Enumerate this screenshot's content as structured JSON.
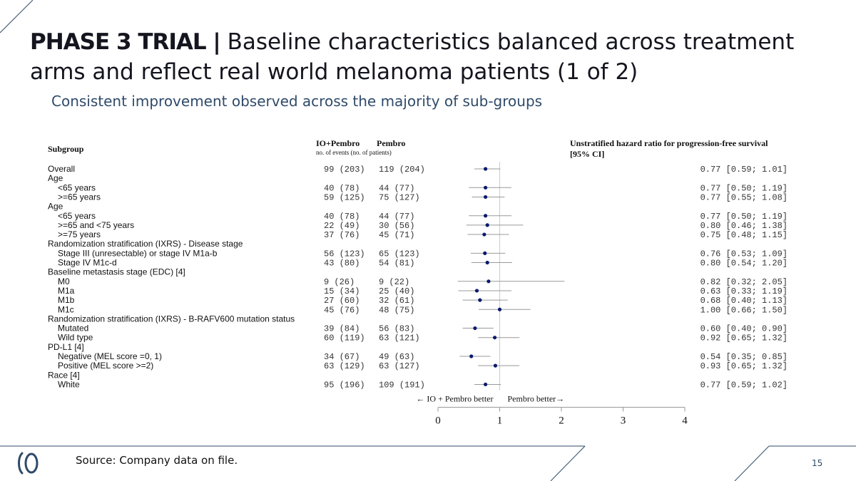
{
  "header": {
    "title_bold": "PHASE 3 TRIAL |",
    "title_rest": "Baseline characteristics balanced across treatment arms and reflect real world melanoma patients (1 of 2)",
    "subtitle": "Consistent improvement observed across the majority of sub-groups"
  },
  "footer": {
    "source": "Source: Company data on file.",
    "page_number": "15"
  },
  "colors": {
    "accent": "#2f4a6a",
    "marker": "#0a1a6e",
    "ci_line": "#999999",
    "divider": "#2f4a6a"
  },
  "chart_data": {
    "type": "forest",
    "title": "Unstratified hazard ratio for progression-free survival",
    "title_line2": "[95% CI]",
    "col_subgroup": "Subgroup",
    "col_io": "IO+Pembro",
    "col_pembro": "Pembro",
    "col_units": "no. of events  (no. of patients)",
    "left_label": "← IO + Pembro better",
    "right_label": "Pembro better→",
    "xlim": [
      0,
      4
    ],
    "xticks": [
      "0",
      "1",
      "2",
      "3",
      "4"
    ],
    "reference_line": 1,
    "rows": [
      {
        "label": "Overall",
        "indent": false,
        "io": "99 (203)",
        "pembro": "119 (204)",
        "hr": 0.77,
        "lo": 0.59,
        "hi": 1.01,
        "ci_text": "0.77 [0.59; 1.01]"
      },
      {
        "label": "Age",
        "indent": false,
        "header": true
      },
      {
        "label": "<65 years",
        "indent": true,
        "io": "40 (78)",
        "pembro": "44 (77)",
        "hr": 0.77,
        "lo": 0.5,
        "hi": 1.19,
        "ci_text": "0.77 [0.50; 1.19]"
      },
      {
        "label": ">=65 years",
        "indent": true,
        "io": "59 (125)",
        "pembro": "75 (127)",
        "hr": 0.77,
        "lo": 0.55,
        "hi": 1.08,
        "ci_text": "0.77 [0.55; 1.08]"
      },
      {
        "label": "Age",
        "indent": false,
        "header": true
      },
      {
        "label": "<65 years",
        "indent": true,
        "io": "40 (78)",
        "pembro": "44 (77)",
        "hr": 0.77,
        "lo": 0.5,
        "hi": 1.19,
        "ci_text": "0.77 [0.50; 1.19]"
      },
      {
        "label": ">=65 and <75 years",
        "indent": true,
        "io": "22 (49)",
        "pembro": "30 (56)",
        "hr": 0.8,
        "lo": 0.46,
        "hi": 1.38,
        "ci_text": "0.80 [0.46; 1.38]"
      },
      {
        "label": ">=75 years",
        "indent": true,
        "io": "37 (76)",
        "pembro": "45 (71)",
        "hr": 0.75,
        "lo": 0.48,
        "hi": 1.15,
        "ci_text": "0.75 [0.48; 1.15]"
      },
      {
        "label": "Randomization stratification (IXRS) - Disease stage",
        "indent": false,
        "header": true
      },
      {
        "label": "Stage III (unresectable) or stage IV M1a-b",
        "indent": true,
        "io": "56 (123)",
        "pembro": "65 (123)",
        "hr": 0.76,
        "lo": 0.53,
        "hi": 1.09,
        "ci_text": "0.76 [0.53; 1.09]"
      },
      {
        "label": "Stage IV M1c-d",
        "indent": true,
        "io": "43 (80)",
        "pembro": "54 (81)",
        "hr": 0.8,
        "lo": 0.54,
        "hi": 1.2,
        "ci_text": "0.80 [0.54; 1.20]"
      },
      {
        "label": "Baseline metastasis stage (EDC) [4]",
        "indent": false,
        "header": true
      },
      {
        "label": "M0",
        "indent": true,
        "io": "9 (26)",
        "pembro": "9 (22)",
        "hr": 0.82,
        "lo": 0.32,
        "hi": 2.05,
        "ci_text": "0.82 [0.32; 2.05]"
      },
      {
        "label": "M1a",
        "indent": true,
        "io": "15 (34)",
        "pembro": "25 (40)",
        "hr": 0.63,
        "lo": 0.33,
        "hi": 1.19,
        "ci_text": "0.63 [0.33; 1.19]"
      },
      {
        "label": "M1b",
        "indent": true,
        "io": "27 (60)",
        "pembro": "32 (61)",
        "hr": 0.68,
        "lo": 0.4,
        "hi": 1.13,
        "ci_text": "0.68 [0.40; 1.13]"
      },
      {
        "label": "M1c",
        "indent": true,
        "io": "45 (76)",
        "pembro": "48 (75)",
        "hr": 1.0,
        "lo": 0.66,
        "hi": 1.5,
        "ci_text": "1.00 [0.66; 1.50]"
      },
      {
        "label": "Randomization stratification (IXRS) - B-RAFV600 mutation status",
        "indent": false,
        "header": true
      },
      {
        "label": "Mutated",
        "indent": true,
        "io": "39 (84)",
        "pembro": "56 (83)",
        "hr": 0.6,
        "lo": 0.4,
        "hi": 0.9,
        "ci_text": "0.60 [0.40; 0.90]"
      },
      {
        "label": "Wild type",
        "indent": true,
        "io": "60 (119)",
        "pembro": "63 (121)",
        "hr": 0.92,
        "lo": 0.65,
        "hi": 1.32,
        "ci_text": "0.92 [0.65; 1.32]"
      },
      {
        "label": "PD-L1 [4]",
        "indent": false,
        "header": true
      },
      {
        "label": "Negative (MEL score =0, 1)",
        "indent": true,
        "io": "34 (67)",
        "pembro": "49 (63)",
        "hr": 0.54,
        "lo": 0.35,
        "hi": 0.85,
        "ci_text": "0.54 [0.35; 0.85]"
      },
      {
        "label": "Positive (MEL score >=2)",
        "indent": true,
        "io": "63 (129)",
        "pembro": "63 (127)",
        "hr": 0.93,
        "lo": 0.65,
        "hi": 1.32,
        "ci_text": "0.93 [0.65; 1.32]"
      },
      {
        "label": "Race [4]",
        "indent": false,
        "header": true
      },
      {
        "label": "White",
        "indent": true,
        "io": "95 (196)",
        "pembro": "109 (191)",
        "hr": 0.77,
        "lo": 0.59,
        "hi": 1.02,
        "ci_text": "0.77 [0.59; 1.02]"
      }
    ]
  }
}
